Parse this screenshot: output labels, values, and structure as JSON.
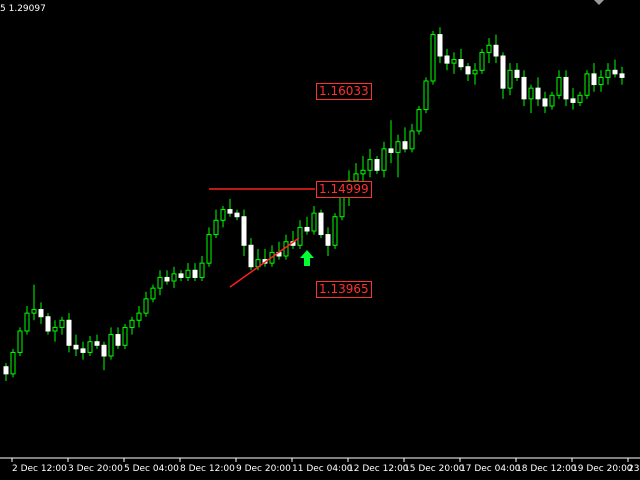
{
  "header": {
    "symbol_fragment": "5",
    "price": "1.29097"
  },
  "levels": [
    "1.16033",
    "1.14999",
    "1.13965"
  ],
  "colors": {
    "background": "#000000",
    "candle_body": "#ffffff",
    "candle_wick": "#00ff00",
    "lines": "#ff2020",
    "arrow": "#00ff33",
    "level_text": "#ff3030"
  },
  "arrow_icon": "up-arrow-icon",
  "chart_data": {
    "type": "candlestick",
    "x_tick_labels": [
      "2 Dec 12:00",
      "3 Dec 20:00",
      "5 Dec 04:00",
      "8 Dec 12:00",
      "9 Dec 20:00",
      "11 Dec 04:00",
      "12 Dec 12:00",
      "15 Dec 20:00",
      "17 Dec 04:00",
      "18 Dec 12:00",
      "19 Dec 20:00",
      "23"
    ],
    "y_range": [
      1.115,
      1.178
    ],
    "candles": [
      [
        1.1275,
        1.128,
        1.1255,
        1.1265
      ],
      [
        1.1265,
        1.13,
        1.126,
        1.1295
      ],
      [
        1.1295,
        1.133,
        1.129,
        1.1325
      ],
      [
        1.1325,
        1.136,
        1.132,
        1.135
      ],
      [
        1.135,
        1.139,
        1.134,
        1.1355
      ],
      [
        1.1355,
        1.1365,
        1.1335,
        1.1345
      ],
      [
        1.1345,
        1.135,
        1.132,
        1.1325
      ],
      [
        1.1325,
        1.134,
        1.131,
        1.133
      ],
      [
        1.133,
        1.1345,
        1.132,
        1.134
      ],
      [
        1.134,
        1.135,
        1.1295,
        1.1305
      ],
      [
        1.1305,
        1.132,
        1.129,
        1.13
      ],
      [
        1.13,
        1.131,
        1.1285,
        1.1295
      ],
      [
        1.1295,
        1.1318,
        1.129,
        1.131
      ],
      [
        1.131,
        1.132,
        1.13,
        1.1305
      ],
      [
        1.1305,
        1.131,
        1.127,
        1.129
      ],
      [
        1.129,
        1.133,
        1.1285,
        1.132
      ],
      [
        1.132,
        1.133,
        1.13,
        1.1305
      ],
      [
        1.1305,
        1.1335,
        1.13,
        1.133
      ],
      [
        1.133,
        1.1345,
        1.132,
        1.134
      ],
      [
        1.134,
        1.136,
        1.133,
        1.135
      ],
      [
        1.135,
        1.138,
        1.1345,
        1.137
      ],
      [
        1.137,
        1.139,
        1.1365,
        1.1385
      ],
      [
        1.1385,
        1.141,
        1.1375,
        1.14
      ],
      [
        1.14,
        1.141,
        1.139,
        1.1395
      ],
      [
        1.1395,
        1.1415,
        1.1385,
        1.1405
      ],
      [
        1.1405,
        1.141,
        1.1395,
        1.14
      ],
      [
        1.14,
        1.142,
        1.1395,
        1.141
      ],
      [
        1.141,
        1.142,
        1.1395,
        1.14
      ],
      [
        1.14,
        1.143,
        1.1395,
        1.142
      ],
      [
        1.142,
        1.147,
        1.1415,
        1.146
      ],
      [
        1.146,
        1.1495,
        1.1455,
        1.148
      ],
      [
        1.148,
        1.15,
        1.147,
        1.1495
      ],
      [
        1.1495,
        1.151,
        1.1485,
        1.149
      ],
      [
        1.149,
        1.1495,
        1.148,
        1.1485
      ],
      [
        1.1485,
        1.1495,
        1.143,
        1.1445
      ],
      [
        1.1445,
        1.1455,
        1.141,
        1.1415
      ],
      [
        1.1415,
        1.144,
        1.141,
        1.1425
      ],
      [
        1.1425,
        1.144,
        1.1415,
        1.142
      ],
      [
        1.142,
        1.1445,
        1.1415,
        1.1435
      ],
      [
        1.1435,
        1.145,
        1.1425,
        1.143
      ],
      [
        1.143,
        1.146,
        1.1425,
        1.145
      ],
      [
        1.145,
        1.1465,
        1.144,
        1.1445
      ],
      [
        1.1445,
        1.148,
        1.144,
        1.147
      ],
      [
        1.147,
        1.1485,
        1.146,
        1.1465
      ],
      [
        1.1465,
        1.15,
        1.146,
        1.149
      ],
      [
        1.149,
        1.1495,
        1.1455,
        1.146
      ],
      [
        1.146,
        1.147,
        1.143,
        1.1445
      ],
      [
        1.1445,
        1.149,
        1.144,
        1.1485
      ],
      [
        1.1485,
        1.153,
        1.148,
        1.1525
      ],
      [
        1.1525,
        1.155,
        1.15,
        1.1535
      ],
      [
        1.1535,
        1.156,
        1.152,
        1.1545
      ],
      [
        1.1545,
        1.157,
        1.153,
        1.155
      ],
      [
        1.155,
        1.158,
        1.154,
        1.1565
      ],
      [
        1.1565,
        1.157,
        1.1545,
        1.155
      ],
      [
        1.155,
        1.159,
        1.154,
        1.158
      ],
      [
        1.158,
        1.162,
        1.156,
        1.1575
      ],
      [
        1.1575,
        1.16,
        1.154,
        1.159
      ],
      [
        1.159,
        1.161,
        1.1575,
        1.158
      ],
      [
        1.158,
        1.1615,
        1.1575,
        1.1605
      ],
      [
        1.1605,
        1.164,
        1.16,
        1.1635
      ],
      [
        1.1635,
        1.168,
        1.163,
        1.1675
      ],
      [
        1.1675,
        1.1745,
        1.167,
        1.174
      ],
      [
        1.174,
        1.175,
        1.17,
        1.171
      ],
      [
        1.171,
        1.172,
        1.169,
        1.17
      ],
      [
        1.17,
        1.1715,
        1.1685,
        1.1705
      ],
      [
        1.1705,
        1.172,
        1.169,
        1.1695
      ],
      [
        1.1695,
        1.17,
        1.1675,
        1.1685
      ],
      [
        1.1685,
        1.17,
        1.167,
        1.169
      ],
      [
        1.169,
        1.172,
        1.1685,
        1.1715
      ],
      [
        1.1715,
        1.1735,
        1.17,
        1.1725
      ],
      [
        1.1725,
        1.174,
        1.17,
        1.171
      ],
      [
        1.171,
        1.1715,
        1.165,
        1.1665
      ],
      [
        1.1665,
        1.17,
        1.1655,
        1.169
      ],
      [
        1.169,
        1.17,
        1.1675,
        1.168
      ],
      [
        1.168,
        1.169,
        1.164,
        1.165
      ],
      [
        1.165,
        1.167,
        1.163,
        1.1665
      ],
      [
        1.1665,
        1.168,
        1.164,
        1.165
      ],
      [
        1.165,
        1.166,
        1.163,
        1.164
      ],
      [
        1.164,
        1.166,
        1.1635,
        1.1655
      ],
      [
        1.1655,
        1.169,
        1.165,
        1.168
      ],
      [
        1.168,
        1.169,
        1.164,
        1.165
      ],
      [
        1.165,
        1.1665,
        1.1635,
        1.1645
      ],
      [
        1.1645,
        1.166,
        1.164,
        1.1655
      ],
      [
        1.1655,
        1.169,
        1.165,
        1.1685
      ],
      [
        1.1685,
        1.17,
        1.166,
        1.167
      ],
      [
        1.167,
        1.169,
        1.166,
        1.168
      ],
      [
        1.168,
        1.17,
        1.167,
        1.169
      ],
      [
        1.169,
        1.1705,
        1.168,
        1.1685
      ],
      [
        1.1685,
        1.1695,
        1.167,
        1.168
      ]
    ]
  }
}
